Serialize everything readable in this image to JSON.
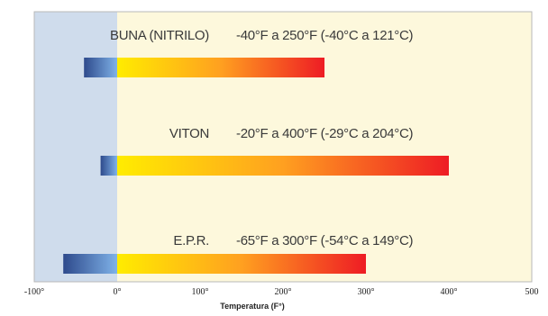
{
  "chart_data": {
    "type": "bar",
    "orientation": "horizontal",
    "xlabel": "Temperatura (F°)",
    "xlim": [
      -100,
      500
    ],
    "xticks": [
      -100,
      0,
      100,
      200,
      300,
      400,
      500
    ],
    "xtick_labels": [
      "-100°",
      "0°",
      "100°",
      "200°",
      "300°",
      "400°",
      "500"
    ],
    "below_zero_shading": true,
    "series": [
      {
        "name": "BUNA (NITRILO)",
        "range_label": "-40°F a 250°F (-40°C a 121°C)",
        "min": -40,
        "max": 250
      },
      {
        "name": "VITON",
        "range_label": "-20°F a 400°F (-29°C a 204°C)",
        "min": -20,
        "max": 400
      },
      {
        "name": "E.P.R.",
        "range_label": "-65°F a 300°F (-54°C a 149°C)",
        "min": -65,
        "max": 300
      }
    ],
    "colors": {
      "cold_panel": "#cfdcec",
      "warm_panel": "#fdf8dc",
      "cold_start": "#2e4a8c",
      "cold_end": "#7fb2e8",
      "warm_start": "#ffec00",
      "warm_mid": "#ffa020",
      "warm_end": "#ee1c24"
    }
  }
}
